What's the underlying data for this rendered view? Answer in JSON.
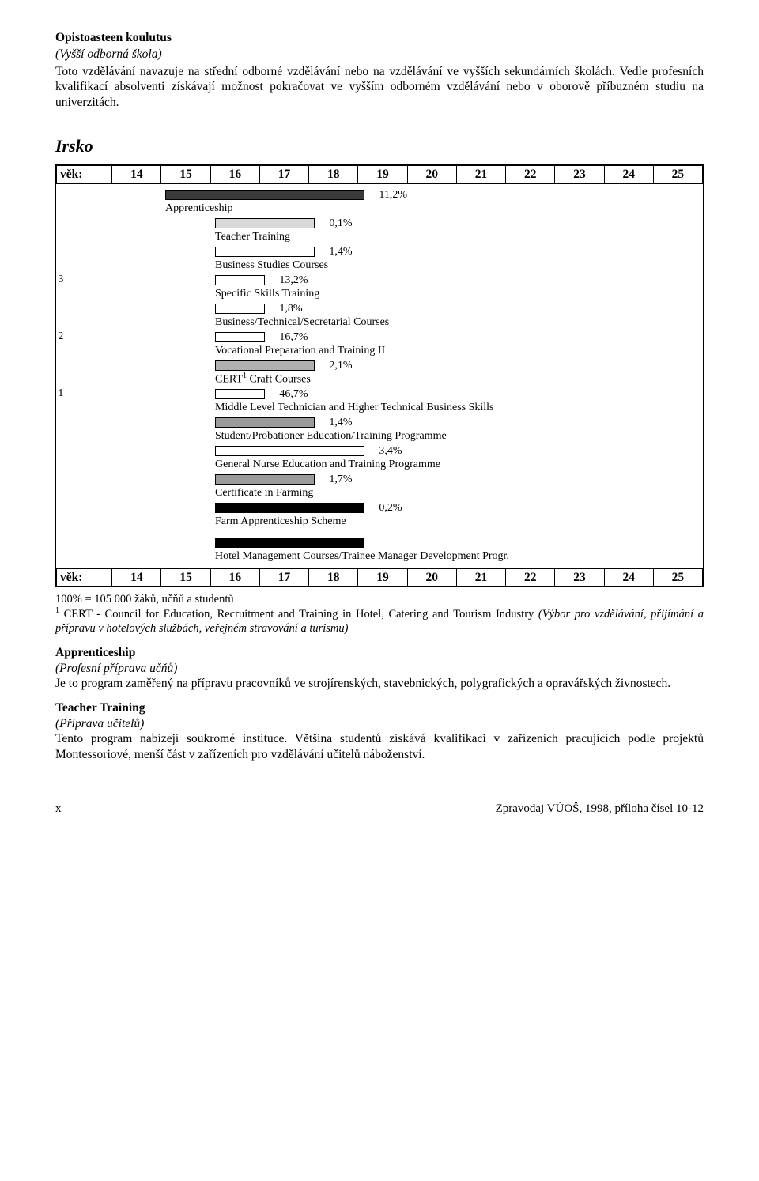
{
  "section1": {
    "title": "Opistoasteen koulutus",
    "subtitle": "(Vyšší odborná škola)",
    "body": "Toto vzdělávání navazuje na střední odborné vzdělávání nebo na vzdělávání ve vyšších sekundárních školách. Vedle profesních kvalifikací absolventi získávají možnost pokračovat ve vyšším odborném vzdělávání nebo v oborově příbuzném studiu na univerzitách."
  },
  "country": "Irsko",
  "ageHeader": {
    "label": "věk:",
    "ages": [
      "14",
      "15",
      "16",
      "17",
      "18",
      "19",
      "20",
      "21",
      "22",
      "23",
      "24",
      "25"
    ]
  },
  "chart": {
    "unitWidth": 63,
    "items": [
      {
        "type": "bar",
        "left_units": 2,
        "width_units": 4,
        "fill": "#3a3a3a",
        "pct": "11,2%",
        "pct_left_units": 6.2
      },
      {
        "type": "label",
        "text": "Apprenticeship",
        "indent_units": 2
      },
      {
        "type": "bar",
        "left_units": 3,
        "width_units": 2,
        "fill": "#d8d8d8",
        "pct": "0,1%",
        "pct_left_units": 5.2
      },
      {
        "type": "label",
        "text": "Teacher Training",
        "indent_units": 3
      },
      {
        "type": "bar",
        "left_units": 3,
        "width_units": 2,
        "fill": "#ffffff",
        "pct": "1,4%",
        "pct_left_units": 5.2
      },
      {
        "type": "label",
        "text": "Business Studies Courses",
        "indent_units": 3
      },
      {
        "type": "bar",
        "left_units": 3,
        "width_units": 1,
        "fill": "#ffffff",
        "pct": "13,2%",
        "pct_left_units": 4.2,
        "gutter": "3"
      },
      {
        "type": "label",
        "text": "Specific Skills Training",
        "indent_units": 3
      },
      {
        "type": "bar",
        "left_units": 3,
        "width_units": 1,
        "fill": "#ffffff",
        "pct": "1,8%",
        "pct_left_units": 4.2
      },
      {
        "type": "label",
        "text": "Business/Technical/Secretarial Courses",
        "indent_units": 3
      },
      {
        "type": "bar",
        "left_units": 3,
        "width_units": 1,
        "fill": "#ffffff",
        "pct": "16,7%",
        "pct_left_units": 4.2,
        "gutter": "2"
      },
      {
        "type": "label",
        "text": "Vocational Preparation and Training II",
        "indent_units": 3
      },
      {
        "type": "bar",
        "left_units": 3,
        "width_units": 2,
        "fill": "#b0b0b0",
        "pct": "2,1%",
        "pct_left_units": 5.2
      },
      {
        "type": "label_sup",
        "prefix": "CERT",
        "sup": "1",
        "suffix": " Craft Courses",
        "indent_units": 3
      },
      {
        "type": "bar",
        "left_units": 3,
        "width_units": 1,
        "fill": "#ffffff",
        "pct": "46,7%",
        "pct_left_units": 4.2,
        "gutter": "1"
      },
      {
        "type": "label",
        "text": "Middle Level Technician and Higher Technical Business Skills",
        "indent_units": 3
      },
      {
        "type": "bar",
        "left_units": 3,
        "width_units": 2,
        "fill": "#9a9a9a",
        "pct": "1,4%",
        "pct_left_units": 5.2
      },
      {
        "type": "label",
        "text": "Student/Probationer Education/Training Programme",
        "indent_units": 3
      },
      {
        "type": "bar",
        "left_units": 3,
        "width_units": 3,
        "fill": "#ffffff",
        "pct": "3,4%",
        "pct_left_units": 6.2
      },
      {
        "type": "label",
        "text": "General Nurse Education and Training Programme",
        "indent_units": 3
      },
      {
        "type": "bar",
        "left_units": 3,
        "width_units": 2,
        "fill": "#9a9a9a",
        "pct": "1,7%",
        "pct_left_units": 5.2
      },
      {
        "type": "label",
        "text": "Certificate in Farming",
        "indent_units": 3
      },
      {
        "type": "bar",
        "left_units": 3,
        "width_units": 3,
        "fill": "#000000",
        "pct": "0,2%",
        "pct_left_units": 6.2
      },
      {
        "type": "label",
        "text": "Farm Apprenticeship Scheme",
        "indent_units": 3
      },
      {
        "type": "spacer"
      },
      {
        "type": "bar",
        "left_units": 3,
        "width_units": 3,
        "fill": "#000000",
        "pct": "",
        "pct_left_units": 6.2
      },
      {
        "type": "label",
        "text": "Hotel Management Courses/Trainee Manager Development Progr.",
        "indent_units": 3
      }
    ]
  },
  "footnotes": {
    "line1": "100% = 105 000 žáků, učňů a studentů",
    "line2_prefix": "CERT - Council for Education, Recruitment and Training in Hotel, Catering and Tourism Industry ",
    "line2_italic": "(Výbor pro vzdělávání, přijímání a přípravu v hotelových službách, veřejném stravování a turismu)",
    "sup": "1"
  },
  "defs": [
    {
      "title": "Apprenticeship",
      "sub": "(Profesní příprava učňů)",
      "body": "Je to program zaměřený na přípravu pracovníků ve strojírenských, stavebnických, polygrafických a opravářských živnostech."
    },
    {
      "title": "Teacher Training",
      "sub": "(Příprava učitelů)",
      "body": "Tento program nabízejí soukromé instituce. Většina studentů získává kvalifikaci v zařízeních pracujících podle projektů Montessoriové, menší část v zařízeních pro vzdělávání učitelů náboženství."
    }
  ],
  "footer": {
    "left": "x",
    "right": "Zpravodaj VÚOŠ, 1998, příloha čísel 10-12"
  }
}
